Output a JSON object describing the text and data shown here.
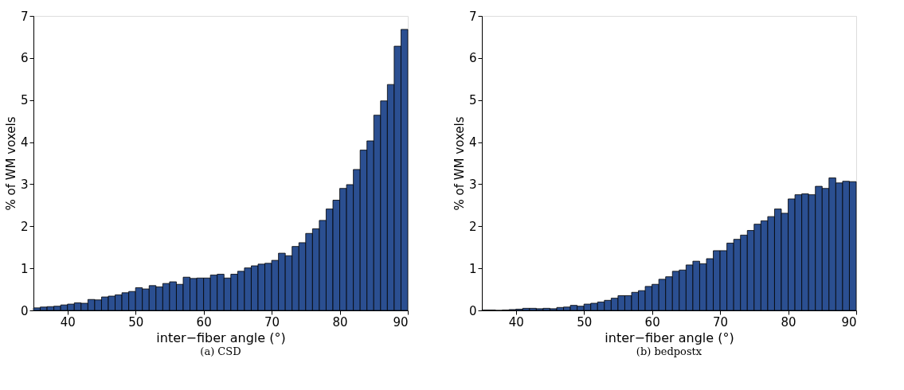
{
  "chart_data": [
    {
      "type": "histogram",
      "title": "(a) CSD",
      "xlabel": "inter−fiber angle (°)",
      "ylabel": "% of WM voxels",
      "color": "#2b4f91",
      "bins": [
        35,
        36,
        37,
        38,
        39,
        40,
        41,
        42,
        43,
        44,
        45,
        46,
        47,
        48,
        49,
        50,
        51,
        52,
        53,
        54,
        55,
        56,
        57,
        58,
        59,
        60,
        61,
        62,
        63,
        64,
        65,
        66,
        67,
        68,
        69,
        70,
        71,
        72,
        73,
        74,
        75,
        76,
        77,
        78,
        79,
        80,
        81,
        82,
        83,
        84,
        85,
        86,
        87,
        88,
        89,
        90
      ],
      "values": [
        0.06,
        0.08,
        0.09,
        0.1,
        0.13,
        0.15,
        0.18,
        0.17,
        0.26,
        0.25,
        0.32,
        0.34,
        0.37,
        0.42,
        0.45,
        0.54,
        0.51,
        0.59,
        0.56,
        0.64,
        0.68,
        0.62,
        0.79,
        0.76,
        0.77,
        0.77,
        0.84,
        0.86,
        0.77,
        0.86,
        0.93,
        1.01,
        1.06,
        1.1,
        1.12,
        1.19,
        1.36,
        1.3,
        1.52,
        1.61,
        1.83,
        1.94,
        2.14,
        2.41,
        2.62,
        2.9,
        2.99,
        3.35,
        3.81,
        4.03,
        4.64,
        4.98,
        5.37,
        6.28,
        6.68
      ],
      "xlim": [
        35,
        90
      ],
      "xticks": [
        40,
        50,
        60,
        70,
        80,
        90
      ],
      "ylim": [
        0,
        7
      ],
      "yticks": [
        0,
        1,
        2,
        3,
        4,
        5,
        6,
        7
      ],
      "grid": false
    },
    {
      "type": "histogram",
      "title": "(b) bedpostx",
      "xlabel": "inter−fiber angle (°)",
      "ylabel": "% of WM voxels",
      "color": "#2b4f91",
      "bins": [
        35,
        36,
        37,
        38,
        39,
        40,
        41,
        42,
        43,
        44,
        45,
        46,
        47,
        48,
        49,
        50,
        51,
        52,
        53,
        54,
        55,
        56,
        57,
        58,
        59,
        60,
        61,
        62,
        63,
        64,
        65,
        66,
        67,
        68,
        69,
        70,
        71,
        72,
        73,
        74,
        75,
        76,
        77,
        78,
        79,
        80,
        81,
        82,
        83,
        84,
        85,
        86,
        87,
        88,
        89,
        90
      ],
      "values": [
        0.01,
        0.01,
        0,
        0.01,
        0.02,
        0.03,
        0.05,
        0.05,
        0.04,
        0.05,
        0.04,
        0.07,
        0.08,
        0.12,
        0.1,
        0.15,
        0.17,
        0.2,
        0.24,
        0.29,
        0.35,
        0.35,
        0.43,
        0.47,
        0.57,
        0.62,
        0.74,
        0.8,
        0.93,
        0.96,
        1.08,
        1.17,
        1.11,
        1.23,
        1.42,
        1.42,
        1.6,
        1.69,
        1.79,
        1.9,
        2.05,
        2.13,
        2.23,
        2.41,
        2.31,
        2.65,
        2.75,
        2.77,
        2.75,
        2.95,
        2.9,
        3.15,
        3.03,
        3.07,
        3.06
      ],
      "xlim": [
        35,
        90
      ],
      "xticks": [
        40,
        50,
        60,
        70,
        80,
        90
      ],
      "ylim": [
        0,
        7
      ],
      "yticks": [
        0,
        1,
        2,
        3,
        4,
        5,
        6,
        7
      ],
      "grid": false
    }
  ]
}
